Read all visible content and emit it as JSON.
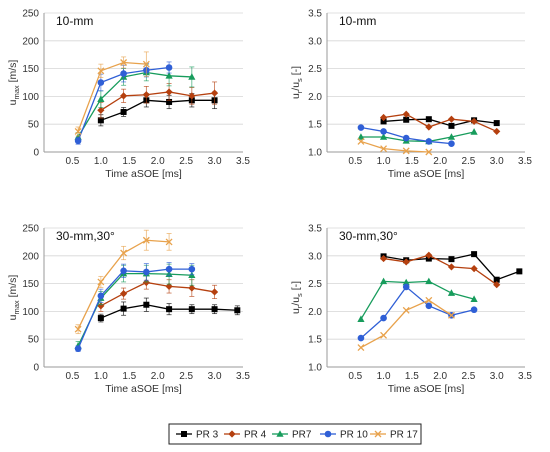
{
  "chart_data": [
    {
      "type": "line",
      "title": "10-mm",
      "xlabel": "Time aSOE [ms]",
      "ylabel": "u_max [m/s]",
      "xlim": [
        0,
        3.5
      ],
      "ylim": [
        0,
        250
      ],
      "xticks": [
        "0.5",
        "1.0",
        "1.5",
        "2.0",
        "2.5",
        "3.0",
        "3.5"
      ],
      "yticks": [
        "0",
        "50",
        "100",
        "150",
        "200",
        "250"
      ],
      "error_bars": true,
      "series": [
        {
          "name": "PR 3",
          "x": [
            1.0,
            1.4,
            1.8,
            2.2,
            2.6,
            3.0
          ],
          "y": [
            57,
            72,
            93,
            90,
            93,
            93
          ],
          "err": [
            10,
            8,
            12,
            12,
            12,
            15
          ]
        },
        {
          "name": "PR 4",
          "x": [
            1.0,
            1.4,
            1.8,
            2.2,
            2.6,
            3.0
          ],
          "y": [
            75,
            101,
            103,
            108,
            101,
            106
          ],
          "err": [
            14,
            12,
            15,
            15,
            15,
            20
          ]
        },
        {
          "name": "PR7",
          "x": [
            0.6,
            1.0,
            1.4,
            1.8,
            2.2,
            2.6
          ],
          "y": [
            27,
            95,
            135,
            143,
            137,
            135
          ],
          "err": [
            8,
            15,
            15,
            15,
            18,
            18
          ]
        },
        {
          "name": "PR 10",
          "x": [
            0.6,
            1.0,
            1.4,
            1.8,
            2.2
          ],
          "y": [
            20,
            125,
            141,
            147,
            152
          ],
          "err": [
            6,
            15,
            15,
            12,
            10
          ]
        },
        {
          "name": "PR 17",
          "x": [
            0.6,
            1.0,
            1.4,
            1.8
          ],
          "y": [
            37,
            146,
            161,
            158
          ],
          "err": [
            8,
            12,
            10,
            22
          ]
        }
      ]
    },
    {
      "type": "line",
      "title": "10-mm",
      "xlabel": "Time aSOE [ms]",
      "ylabel": "u_r/u_s [-]",
      "xlim": [
        0,
        3.5
      ],
      "ylim": [
        1.0,
        3.5
      ],
      "xticks": [
        "0.5",
        "1.0",
        "1.5",
        "2.0",
        "2.5",
        "3.0",
        "3.5"
      ],
      "yticks": [
        "1.0",
        "1.5",
        "2.0",
        "2.5",
        "3.0",
        "3.5"
      ],
      "error_bars": false,
      "series": [
        {
          "name": "PR 3",
          "x": [
            1.0,
            1.4,
            1.8,
            2.2,
            2.6,
            3.0
          ],
          "y": [
            1.55,
            1.58,
            1.59,
            1.47,
            1.57,
            1.52
          ]
        },
        {
          "name": "PR 4",
          "x": [
            1.0,
            1.4,
            1.8,
            2.2,
            2.6,
            3.0
          ],
          "y": [
            1.62,
            1.68,
            1.45,
            1.59,
            1.55,
            1.37
          ]
        },
        {
          "name": "PR7",
          "x": [
            0.6,
            1.0,
            1.4,
            1.8,
            2.2,
            2.6
          ],
          "y": [
            1.27,
            1.27,
            1.2,
            1.19,
            1.27,
            1.36
          ]
        },
        {
          "name": "PR 10",
          "x": [
            0.6,
            1.0,
            1.4,
            1.8,
            2.2
          ],
          "y": [
            1.44,
            1.37,
            1.25,
            1.19,
            1.15
          ]
        },
        {
          "name": "PR 17",
          "x": [
            0.6,
            1.0,
            1.4,
            1.8
          ],
          "y": [
            1.19,
            1.06,
            1.02,
            1.0
          ]
        }
      ]
    },
    {
      "type": "line",
      "title": "30-mm,30°",
      "xlabel": "Time aSOE [ms]",
      "ylabel": "u_max [m/s]",
      "xlim": [
        0,
        3.5
      ],
      "ylim": [
        0,
        250
      ],
      "xticks": [
        "0.5",
        "1.0",
        "1.5",
        "2.0",
        "2.5",
        "3.0",
        "3.5"
      ],
      "yticks": [
        "0",
        "50",
        "100",
        "150",
        "200",
        "250"
      ],
      "error_bars": true,
      "series": [
        {
          "name": "PR 3",
          "x": [
            1.0,
            1.4,
            1.8,
            2.2,
            2.6,
            3.0,
            3.4
          ],
          "y": [
            88,
            105,
            112,
            104,
            104,
            104,
            102
          ],
          "err": [
            7,
            12,
            12,
            10,
            8,
            8,
            8
          ]
        },
        {
          "name": "PR 4",
          "x": [
            1.0,
            1.4,
            1.8,
            2.2,
            2.6,
            3.0
          ],
          "y": [
            110,
            132,
            152,
            145,
            142,
            135
          ],
          "err": [
            10,
            10,
            12,
            12,
            15,
            12
          ]
        },
        {
          "name": "PR7",
          "x": [
            0.6,
            1.0,
            1.4,
            1.8,
            2.2,
            2.6
          ],
          "y": [
            38,
            124,
            168,
            168,
            167,
            165
          ],
          "err": [
            8,
            12,
            15,
            15,
            18,
            18
          ]
        },
        {
          "name": "PR 10",
          "x": [
            0.6,
            1.0,
            1.4,
            1.8,
            2.2,
            2.6
          ],
          "y": [
            33,
            128,
            173,
            171,
            176,
            176
          ],
          "err": [
            5,
            12,
            12,
            15,
            12,
            10
          ]
        },
        {
          "name": "PR 17",
          "x": [
            0.6,
            1.0,
            1.4,
            1.8,
            2.2
          ],
          "y": [
            68,
            153,
            205,
            228,
            225
          ],
          "err": [
            8,
            10,
            12,
            18,
            15
          ]
        }
      ]
    },
    {
      "type": "line",
      "title": "30-mm,30°",
      "xlabel": "Time aSOE [ms]",
      "ylabel": "u_r/u_s [-]",
      "xlim": [
        0,
        3.5
      ],
      "ylim": [
        1.0,
        3.5
      ],
      "xticks": [
        "0.5",
        "1.0",
        "1.5",
        "2.0",
        "2.5",
        "3.0",
        "3.5"
      ],
      "yticks": [
        "1.0",
        "1.5",
        "2.0",
        "2.5",
        "3.0",
        "3.5"
      ],
      "error_bars": false,
      "series": [
        {
          "name": "PR 3",
          "x": [
            1.0,
            1.4,
            1.8,
            2.2,
            2.6,
            3.0,
            3.4
          ],
          "y": [
            2.99,
            2.92,
            2.95,
            2.94,
            3.03,
            2.57,
            2.72
          ]
        },
        {
          "name": "PR 4",
          "x": [
            1.0,
            1.4,
            1.8,
            2.2,
            2.6,
            3.0
          ],
          "y": [
            2.95,
            2.89,
            3.01,
            2.8,
            2.77,
            2.48
          ]
        },
        {
          "name": "PR7",
          "x": [
            0.6,
            1.0,
            1.4,
            1.8,
            2.2,
            2.6
          ],
          "y": [
            1.86,
            2.54,
            2.52,
            2.54,
            2.33,
            2.22
          ]
        },
        {
          "name": "PR 10",
          "x": [
            0.6,
            1.0,
            1.4,
            1.8,
            2.2,
            2.6
          ],
          "y": [
            1.52,
            1.88,
            2.44,
            2.1,
            1.93,
            2.03
          ]
        },
        {
          "name": "PR 17",
          "x": [
            0.6,
            1.0,
            1.4,
            1.8,
            2.2
          ],
          "y": [
            1.35,
            1.57,
            2.02,
            2.2,
            1.93
          ]
        }
      ]
    }
  ],
  "legend": {
    "position": "bottom-center",
    "entries": [
      {
        "name": "PR 3",
        "color": "#000000",
        "marker": "square"
      },
      {
        "name": "PR 4",
        "color": "#b5400f",
        "marker": "diamond"
      },
      {
        "name": "PR7",
        "color": "#179c5c",
        "marker": "triangle"
      },
      {
        "name": "PR 10",
        "color": "#2f5fd6",
        "marker": "circle"
      },
      {
        "name": "PR 17",
        "color": "#e8a24c",
        "marker": "x"
      }
    ]
  },
  "styles": {
    "PR 3": {
      "color": "#000000",
      "marker": "square"
    },
    "PR 4": {
      "color": "#b5400f",
      "marker": "diamond"
    },
    "PR7": {
      "color": "#179c5c",
      "marker": "triangle"
    },
    "PR 10": {
      "color": "#2f5fd6",
      "marker": "circle"
    },
    "PR 17": {
      "color": "#e8a24c",
      "marker": "x"
    }
  }
}
